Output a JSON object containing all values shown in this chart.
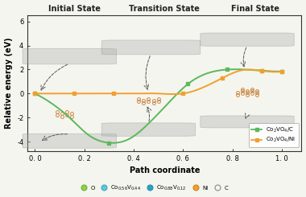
{
  "title_initial": "Initial State",
  "title_transition": "Transition State",
  "title_final": "Final State",
  "xlabel": "Path coordinate",
  "ylabel": "Relative energy (eV)",
  "xlim": [
    -0.03,
    1.08
  ],
  "ylim": [
    -4.8,
    6.5
  ],
  "xticks": [
    0.0,
    0.2,
    0.4,
    0.6,
    0.8,
    1.0
  ],
  "xtick_labels": [
    "0. 0",
    "0. 2",
    "0. 4",
    "0. 6",
    "0. 8",
    "1. 0"
  ],
  "yticks": [
    -4,
    -2,
    0,
    2,
    4,
    6
  ],
  "green_x": [
    0.0,
    0.08,
    0.15,
    0.22,
    0.3,
    0.38,
    0.46,
    0.54,
    0.62,
    0.7,
    0.78,
    0.85,
    0.92,
    1.0
  ],
  "green_y": [
    0.0,
    -1.0,
    -2.2,
    -3.5,
    -4.1,
    -3.8,
    -2.5,
    -0.8,
    0.8,
    1.7,
    2.0,
    2.0,
    1.9,
    1.85
  ],
  "orange_x": [
    0.0,
    0.08,
    0.16,
    0.24,
    0.32,
    0.4,
    0.5,
    0.6,
    0.68,
    0.76,
    0.84,
    0.92,
    1.0
  ],
  "orange_y": [
    0.0,
    0.0,
    0.0,
    0.0,
    0.0,
    0.0,
    0.0,
    0.0,
    0.5,
    1.3,
    1.95,
    1.9,
    1.85
  ],
  "green_color": "#5cb85c",
  "orange_color": "#f0a030",
  "legend_green": "Co$_2$VO$_4$/C",
  "legend_orange": "Co$_2$VO$_4$/Ni",
  "bg_color": "#f5f5ef",
  "plot_bg": "#f5f5ef",
  "legend_items": [
    "O",
    "Co$_{0.56}$V$_{0.44}$",
    "Co$_{0.88}$V$_{0.12}$",
    "Ni",
    "C"
  ],
  "legend_facecolors": [
    "#90d050",
    "#60c8d8",
    "#30a0c0",
    "#f0a030",
    "#ffffff"
  ],
  "legend_edgecolors": [
    "#70b030",
    "#40a8b8",
    "#2090b0",
    "#d08020",
    "#888888"
  ],
  "circles_initial": [
    [
      0.09,
      -1.55
    ],
    [
      0.11,
      -1.65
    ],
    [
      0.13,
      -1.55
    ],
    [
      0.15,
      -1.65
    ],
    [
      0.09,
      -1.8
    ],
    [
      0.11,
      -1.9
    ],
    [
      0.13,
      -1.8
    ],
    [
      0.15,
      -1.9
    ]
  ],
  "circles_transition": [
    [
      0.42,
      -0.45
    ],
    [
      0.44,
      -0.55
    ],
    [
      0.46,
      -0.45
    ],
    [
      0.48,
      -0.55
    ],
    [
      0.5,
      -0.45
    ],
    [
      0.42,
      -0.65
    ],
    [
      0.44,
      -0.75
    ],
    [
      0.46,
      -0.65
    ],
    [
      0.48,
      -0.75
    ],
    [
      0.5,
      -0.65
    ]
  ],
  "circles_final": [
    [
      0.82,
      -0.1
    ],
    [
      0.84,
      0.0
    ],
    [
      0.86,
      -0.1
    ],
    [
      0.88,
      0.0
    ],
    [
      0.9,
      -0.1
    ],
    [
      0.82,
      0.12
    ],
    [
      0.84,
      0.22
    ],
    [
      0.86,
      0.12
    ],
    [
      0.88,
      0.22
    ],
    [
      0.9,
      0.12
    ],
    [
      0.84,
      0.34
    ],
    [
      0.86,
      0.24
    ],
    [
      0.88,
      0.34
    ],
    [
      0.9,
      0.24
    ]
  ],
  "circle_color": "#cc8844",
  "arrow_color": "#555555",
  "mol_gray": "#aaaaaa"
}
